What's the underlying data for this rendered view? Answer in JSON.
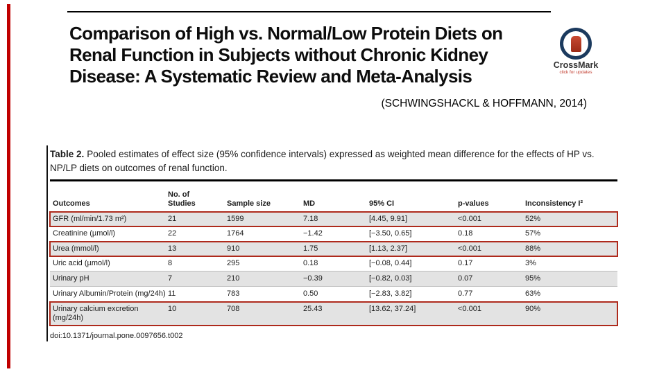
{
  "slide": {
    "accent_color": "#C00000",
    "citation": "(SCHWINGSHACKL & HOFFMANN, 2014)"
  },
  "article": {
    "title_lines": [
      "Comparison of High vs. Normal/Low Protein Diets on",
      "Renal Function in Subjects without Chronic Kidney",
      "Disease: A Systematic Review and Meta-Analysis"
    ],
    "crossmark": {
      "name": "CrossMark",
      "tagline": "click for updates"
    }
  },
  "table": {
    "caption_label": "Table 2.",
    "caption_text": "Pooled estimates of effect size (95% confidence intervals) expressed as weighted mean difference for the effects of HP vs. NP/LP diets on outcomes of renal function.",
    "columns": [
      "Outcomes",
      "No. of\nStudies",
      "Sample size",
      "MD",
      "95% CI",
      "p-values",
      "Inconsistency I²"
    ],
    "rows": [
      {
        "outcome": "GFR (ml/min/1.73 m²)",
        "studies": "21",
        "sample": "1599",
        "md": "7.18",
        "ci": "[4.45, 9.91]",
        "p": "<0.001",
        "i2": "52%"
      },
      {
        "outcome": "Creatinine (µmol/l)",
        "studies": "22",
        "sample": "1764",
        "md": "−1.42",
        "ci": "[−3.50, 0.65]",
        "p": "0.18",
        "i2": "57%"
      },
      {
        "outcome": "Urea (mmol/l)",
        "studies": "13",
        "sample": "910",
        "md": "1.75",
        "ci": "[1.13, 2.37]",
        "p": "<0.001",
        "i2": "88%"
      },
      {
        "outcome": "Uric acid (µmol/l)",
        "studies": "8",
        "sample": "295",
        "md": "0.18",
        "ci": "[−0.08, 0.44]",
        "p": "0.17",
        "i2": "3%"
      },
      {
        "outcome": "Urinary pH",
        "studies": "7",
        "sample": "210",
        "md": "−0.39",
        "ci": "[−0.82, 0.03]",
        "p": "0.07",
        "i2": "95%"
      },
      {
        "outcome": "Urinary Albumin/Protein (mg/24h)",
        "studies": "11",
        "sample": "783",
        "md": "0.50",
        "ci": "[−2.83, 3.82]",
        "p": "0.77",
        "i2": "63%"
      },
      {
        "outcome": "Urinary calcium excretion (mg/24h)",
        "studies": "10",
        "sample": "708",
        "md": "25.43",
        "ci": "[13.62, 37.24]",
        "p": "<0.001",
        "i2": "90%"
      }
    ],
    "doi": "doi:10.1371/journal.pone.0097656.t002"
  }
}
